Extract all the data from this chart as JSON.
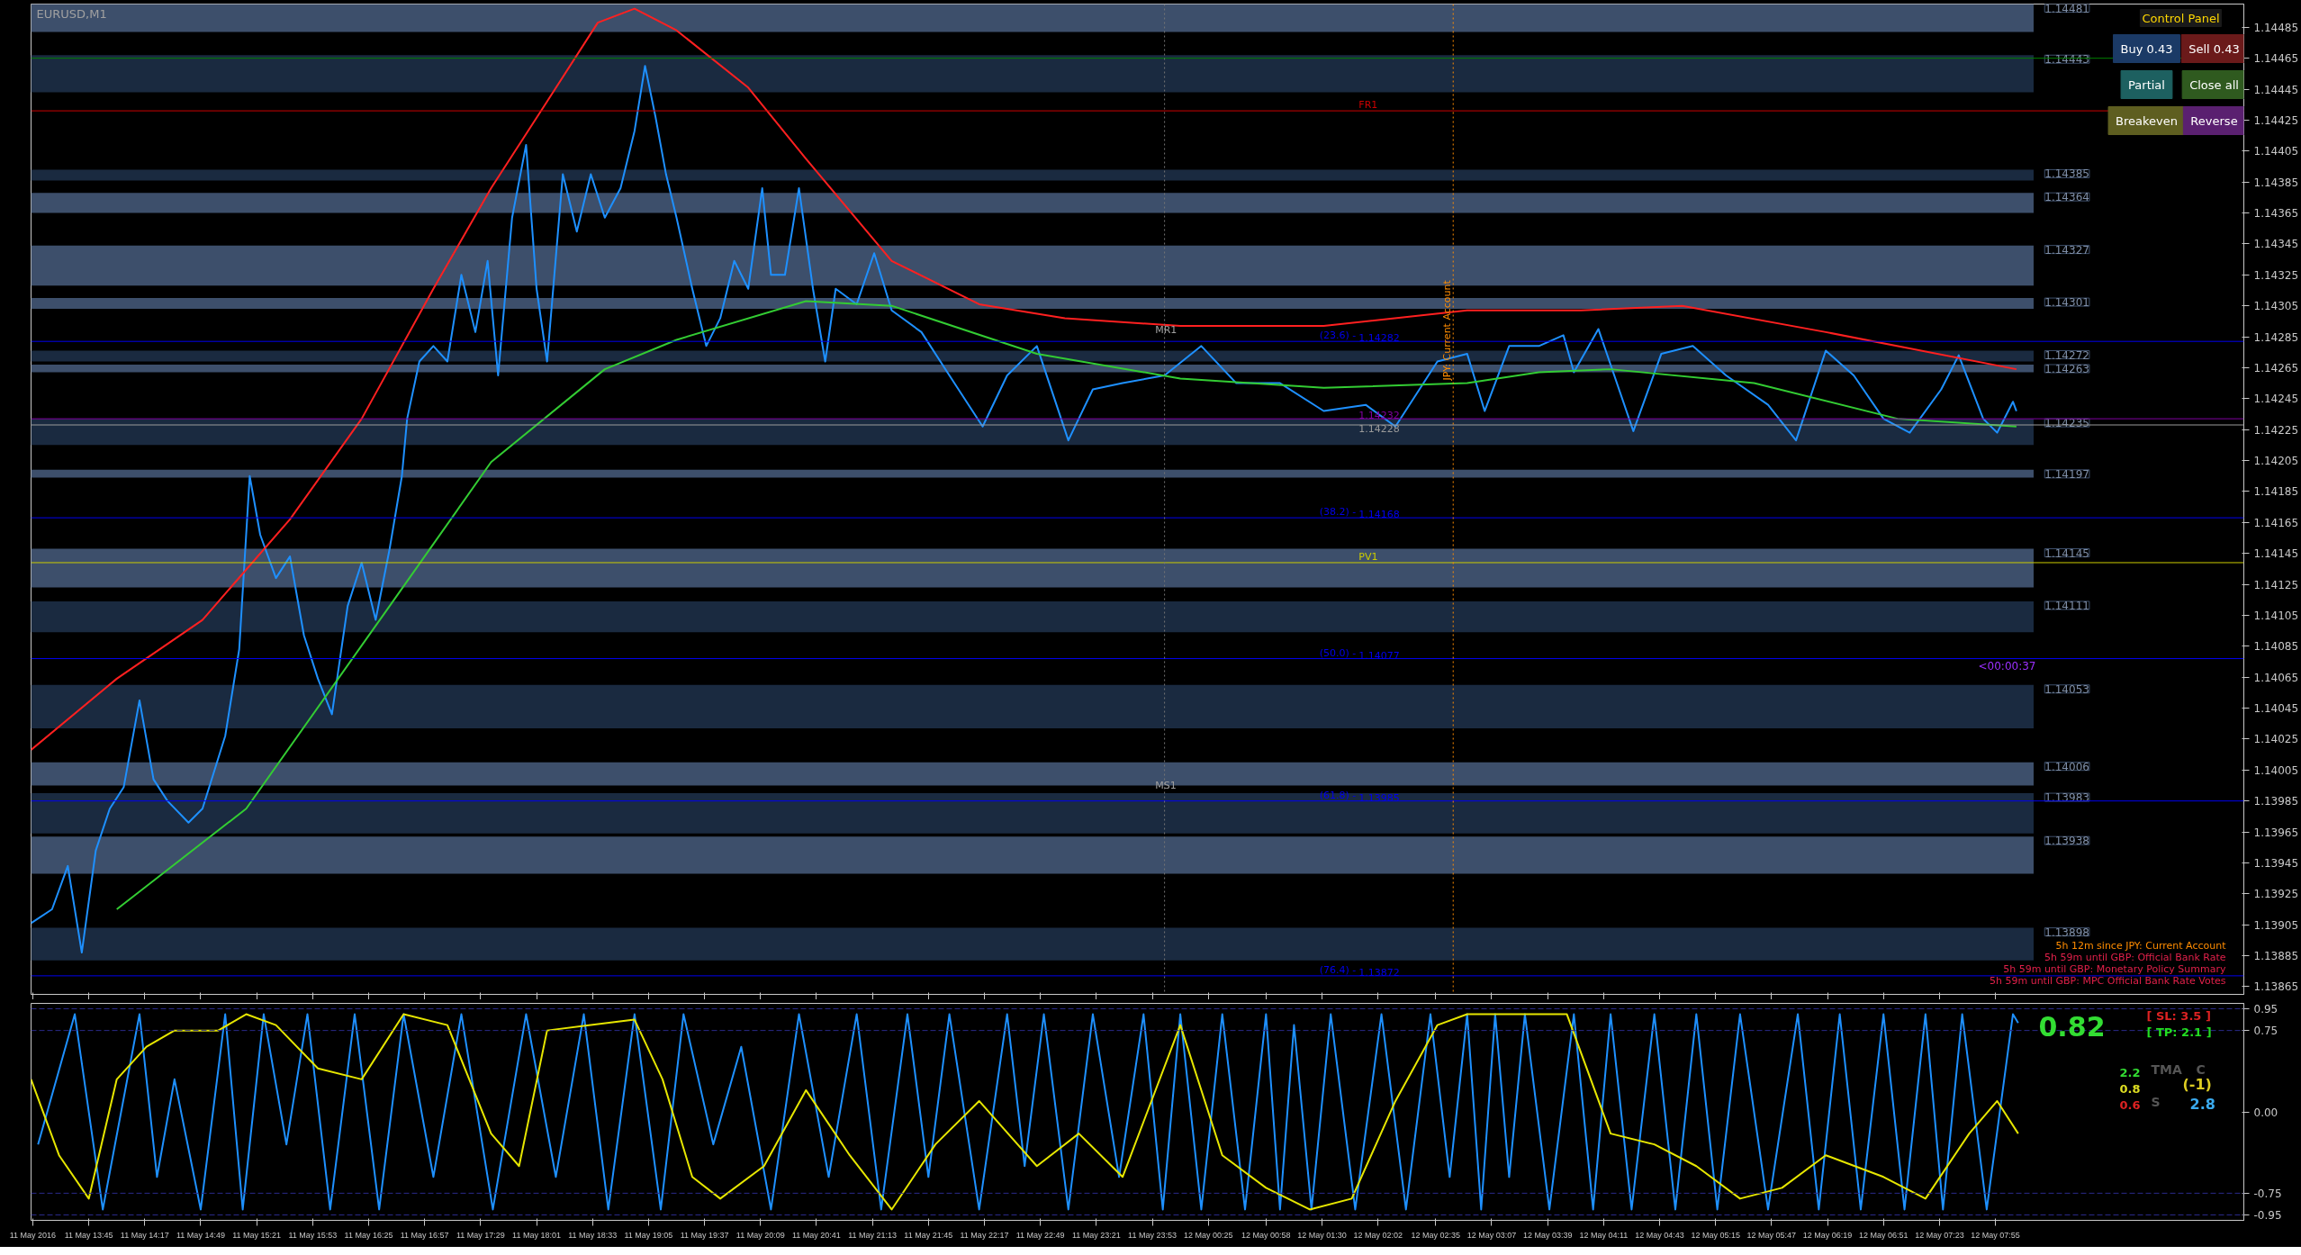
{
  "chart_data": [
    {
      "type": "line",
      "title": "EURUSD,M1",
      "xlim": [
        "2016-05-11T13:12",
        "2016-05-12T10:17"
      ],
      "ylim": [
        1.1386,
        1.145
      ],
      "yticks": [
        1.13865,
        1.13885,
        1.13905,
        1.13925,
        1.13945,
        1.13965,
        1.13985,
        1.14005,
        1.14025,
        1.14045,
        1.14065,
        1.14085,
        1.14105,
        1.14125,
        1.14145,
        1.14165,
        1.14185,
        1.14205,
        1.14225,
        1.14245,
        1.14265,
        1.14285,
        1.14305,
        1.14325,
        1.14345,
        1.14365,
        1.14385,
        1.14405,
        1.14425,
        1.14445,
        1.14465,
        1.14485
      ],
      "xticks": [
        {
          "value": "2016-05-11T13:13",
          "label": null
        },
        {
          "value": "2016-05-11T13:45",
          "label": null
        },
        {
          "value": "2016-05-11T14:17",
          "label": null
        },
        {
          "value": "2016-05-11T14:49",
          "label": null
        },
        {
          "value": "2016-05-11T15:21",
          "label": null
        },
        {
          "value": "2016-05-11T15:53",
          "label": null
        },
        {
          "value": "2016-05-11T16:25",
          "label": null
        },
        {
          "value": "2016-05-11T16:57",
          "label": null
        },
        {
          "value": "2016-05-11T17:29",
          "label": null
        },
        {
          "value": "2016-05-11T18:01",
          "label": null
        },
        {
          "value": "2016-05-11T18:33",
          "label": null
        },
        {
          "value": "2016-05-11T19:05",
          "label": null
        },
        {
          "value": "2016-05-11T19:37",
          "label": null
        },
        {
          "value": "2016-05-11T20:09",
          "label": null
        },
        {
          "value": "2016-05-11T20:41",
          "label": null
        },
        {
          "value": "2016-05-11T21:13",
          "label": null
        },
        {
          "value": "2016-05-11T21:45",
          "label": null
        },
        {
          "value": "2016-05-11T22:17",
          "label": null
        },
        {
          "value": "2016-05-11T22:49",
          "label": null
        },
        {
          "value": "2016-05-11T23:21",
          "label": null
        },
        {
          "value": "2016-05-11T23:53",
          "label": null
        },
        {
          "value": "2016-05-12T00:25",
          "label": null
        },
        {
          "value": "2016-05-12T00:58",
          "label": null
        },
        {
          "value": "2016-05-12T01:30",
          "label": null
        },
        {
          "value": "2016-05-12T02:02",
          "label": null
        },
        {
          "value": "2016-05-12T02:35",
          "label": null
        },
        {
          "value": "2016-05-12T03:07",
          "label": null
        },
        {
          "value": "2016-05-12T03:39",
          "label": null
        },
        {
          "value": "2016-05-12T04:11",
          "label": null
        },
        {
          "value": "2016-05-12T04:43",
          "label": null
        },
        {
          "value": "2016-05-12T05:15",
          "label": null
        },
        {
          "value": "2016-05-12T05:47",
          "label": null
        },
        {
          "value": "2016-05-12T06:19",
          "label": null
        },
        {
          "value": "2016-05-12T06:51",
          "label": null
        },
        {
          "value": "2016-05-12T07:23",
          "label": null
        },
        {
          "value": "2016-05-12T07:55",
          "label": null
        }
      ],
      "tick_labels": "y",
      "grid": false,
      "series": [
        {
          "color": "#1e90ff",
          "x": [
            "2016-05-11T13:12",
            "2016-05-11T13:24",
            "2016-05-11T13:33",
            "2016-05-11T13:41",
            "2016-05-11T13:49",
            "2016-05-11T13:57",
            "2016-05-11T14:05",
            "2016-05-11T14:14",
            "2016-05-11T14:22",
            "2016-05-11T14:30",
            "2016-05-11T14:42",
            "2016-05-11T14:50",
            "2016-05-11T15:03",
            "2016-05-11T15:11",
            "2016-05-11T15:17",
            "2016-05-11T15:23",
            "2016-05-11T15:32",
            "2016-05-11T15:40",
            "2016-05-11T15:48",
            "2016-05-11T15:56",
            "2016-05-11T16:04",
            "2016-05-11T16:13",
            "2016-05-11T16:21",
            "2016-05-11T16:29",
            "2016-05-11T16:37",
            "2016-05-11T16:44",
            "2016-05-11T16:47",
            "2016-05-11T16:54",
            "2016-05-11T17:02",
            "2016-05-11T17:10",
            "2016-05-11T17:18",
            "2016-05-11T17:26",
            "2016-05-11T17:33",
            "2016-05-11T17:39",
            "2016-05-11T17:47",
            "2016-05-11T17:55",
            "2016-05-11T18:01",
            "2016-05-11T18:07",
            "2016-05-11T18:16",
            "2016-05-11T18:24",
            "2016-05-11T18:32",
            "2016-05-11T18:40",
            "2016-05-11T18:49",
            "2016-05-11T18:57",
            "2016-05-11T19:03",
            "2016-05-11T19:09",
            "2016-05-11T19:15",
            "2016-05-11T19:21",
            "2016-05-11T19:30",
            "2016-05-11T19:38",
            "2016-05-11T19:46",
            "2016-05-11T19:54",
            "2016-05-11T20:02",
            "2016-05-11T20:10",
            "2016-05-11T20:15",
            "2016-05-11T20:23",
            "2016-05-11T20:31",
            "2016-05-11T20:39",
            "2016-05-11T20:46",
            "2016-05-11T20:52",
            "2016-05-11T21:04",
            "2016-05-11T21:14",
            "2016-05-11T21:24",
            "2016-05-11T21:41",
            "2016-05-11T21:57",
            "2016-05-11T22:16",
            "2016-05-11T22:30",
            "2016-05-11T22:47",
            "2016-05-11T23:05",
            "2016-05-11T23:19",
            "2016-05-11T23:36",
            "2016-05-12T00:00",
            "2016-05-12T00:21",
            "2016-05-12T00:41",
            "2016-05-12T01:06",
            "2016-05-12T01:31",
            "2016-05-12T01:55",
            "2016-05-12T02:12",
            "2016-05-12T02:36",
            "2016-05-12T02:53",
            "2016-05-12T03:03",
            "2016-05-12T03:17",
            "2016-05-12T03:34",
            "2016-05-12T03:48",
            "2016-05-12T03:54",
            "2016-05-12T04:08",
            "2016-05-12T04:28",
            "2016-05-12T04:44",
            "2016-05-12T05:02",
            "2016-05-12T05:21",
            "2016-05-12T05:45",
            "2016-05-12T06:01",
            "2016-05-12T06:18",
            "2016-05-12T06:34",
            "2016-05-12T06:51",
            "2016-05-12T07:06",
            "2016-05-12T07:24",
            "2016-05-12T07:34",
            "2016-05-12T07:48",
            "2016-05-12T07:56",
            "2016-05-12T08:05",
            "2016-05-12T08:07"
          ],
          "values": [
            1.13906,
            1.13915,
            1.13943,
            1.13887,
            1.13953,
            1.1398,
            1.13994,
            1.1405,
            1.13999,
            1.13985,
            1.13971,
            1.1398,
            1.14027,
            1.14083,
            1.14195,
            1.14157,
            1.14129,
            1.14143,
            1.14092,
            1.14064,
            1.14041,
            1.14111,
            1.14139,
            1.14102,
            1.14148,
            1.14195,
            1.14232,
            1.14269,
            1.14279,
            1.14269,
            1.14325,
            1.14288,
            1.14334,
            1.1426,
            1.14362,
            1.14409,
            1.14316,
            1.14269,
            1.1439,
            1.14353,
            1.1439,
            1.14362,
            1.14381,
            1.14418,
            1.1446,
            1.14427,
            1.1439,
            1.14362,
            1.14316,
            1.14279,
            1.14297,
            1.14334,
            1.14316,
            1.14381,
            1.14325,
            1.14325,
            1.14381,
            1.14316,
            1.14269,
            1.14316,
            1.14306,
            1.14339,
            1.14302,
            1.14288,
            1.1426,
            1.14227,
            1.1426,
            1.14279,
            1.14218,
            1.14251,
            1.14255,
            1.1426,
            1.14279,
            1.14255,
            1.14255,
            1.14237,
            1.14241,
            1.14227,
            1.14269,
            1.14274,
            1.14237,
            1.14279,
            1.14279,
            1.14286,
            1.14262,
            1.1429,
            1.14224,
            1.14274,
            1.14279,
            1.1426,
            1.14241,
            1.14218,
            1.14276,
            1.1426,
            1.14232,
            1.14223,
            1.14251,
            1.14273,
            1.14232,
            1.14223,
            1.14243,
            1.14237
          ]
        },
        {
          "color": "#ff2020",
          "x": [
            "2016-05-11T13:12",
            "2016-05-11T14:01",
            "2016-05-11T14:50",
            "2016-05-11T15:40",
            "2016-05-11T16:21",
            "2016-05-11T17:02",
            "2016-05-11T17:35",
            "2016-05-11T18:07",
            "2016-05-11T18:36",
            "2016-05-11T18:57",
            "2016-05-11T19:21",
            "2016-05-11T20:02",
            "2016-05-11T20:35",
            "2016-05-11T21:24",
            "2016-05-11T22:14",
            "2016-05-11T23:03",
            "2016-05-12T00:09",
            "2016-05-12T01:31",
            "2016-05-12T02:53",
            "2016-05-12T03:58",
            "2016-05-12T04:56",
            "2016-05-12T06:18",
            "2016-05-12T08:07"
          ],
          "values": [
            1.14018,
            1.14064,
            1.14102,
            1.14167,
            1.14232,
            1.14316,
            1.14381,
            1.14437,
            1.14488,
            1.14497,
            1.14483,
            1.14446,
            1.144,
            1.14334,
            1.14306,
            1.14297,
            1.14292,
            1.14292,
            1.14302,
            1.14302,
            1.14305,
            1.14288,
            1.14264
          ]
        },
        {
          "color": "#33cc33",
          "x": [
            "2016-05-11T14:01",
            "2016-05-11T15:15",
            "2016-05-11T16:37",
            "2016-05-11T17:35",
            "2016-05-11T18:40",
            "2016-05-11T19:21",
            "2016-05-11T20:35",
            "2016-05-11T21:24",
            "2016-05-11T22:47",
            "2016-05-12T00:09",
            "2016-05-12T01:31",
            "2016-05-12T02:53",
            "2016-05-12T03:34",
            "2016-05-12T04:15",
            "2016-05-12T05:37",
            "2016-05-12T06:59",
            "2016-05-12T08:07"
          ],
          "values": [
            1.13915,
            1.1398,
            1.14111,
            1.14204,
            1.14264,
            1.14283,
            1.14308,
            1.14305,
            1.14274,
            1.14258,
            1.14252,
            1.14255,
            1.14262,
            1.14264,
            1.14255,
            1.14232,
            1.14227
          ]
        }
      ],
      "bands": [
        {
          "axis": "y",
          "from": 1.14482,
          "to": 1.145,
          "label": "1.14481",
          "color": "#3d4f6b"
        },
        {
          "axis": "y",
          "from": 1.14443,
          "to": 1.14467,
          "label": "1.14443",
          "color": "#1a2a40"
        },
        {
          "axis": "y",
          "from": 1.14386,
          "to": 1.14393,
          "label": "1.14385",
          "color": "#1a2a40"
        },
        {
          "axis": "y",
          "from": 1.14365,
          "to": 1.14378,
          "label": "1.14364",
          "color": "#3d4f6b"
        },
        {
          "axis": "y",
          "from": 1.14318,
          "to": 1.14344,
          "label": "1.14327",
          "color": "#3d4f6b"
        },
        {
          "axis": "y",
          "from": 1.14303,
          "to": 1.1431,
          "label": "1.14301",
          "color": "#3d4f6b"
        },
        {
          "axis": "y",
          "from": 1.14269,
          "to": 1.14276,
          "label": "1.14272",
          "color": "#1a2a40"
        },
        {
          "axis": "y",
          "from": 1.14262,
          "to": 1.14267,
          "label": "1.14263",
          "color": "#3d4f6b"
        },
        {
          "axis": "y",
          "from": 1.14215,
          "to": 1.14232,
          "label": "1.14235",
          "color": "#1a2a40"
        },
        {
          "axis": "y",
          "from": 1.14194,
          "to": 1.14199,
          "label": "1.14197",
          "color": "#3d4f6b"
        },
        {
          "axis": "y",
          "from": 1.14123,
          "to": 1.14148,
          "label": "1.14145",
          "color": "#3d4f6b"
        },
        {
          "axis": "y",
          "from": 1.14094,
          "to": 1.14114,
          "label": "1.14111",
          "color": "#1a2a40"
        },
        {
          "axis": "y",
          "from": 1.14032,
          "to": 1.1406,
          "label": "1.14053",
          "color": "#1a2a40"
        },
        {
          "axis": "y",
          "from": 1.13995,
          "to": 1.1401,
          "label": "1.14006",
          "color": "#3d4f6b"
        },
        {
          "axis": "y",
          "from": 1.13964,
          "to": 1.1399,
          "label": "1.13983",
          "color": "#1a2a40"
        },
        {
          "axis": "y",
          "from": 1.13938,
          "to": 1.13962,
          "label": "1.13938",
          "color": "#3d4f6b"
        },
        {
          "axis": "y",
          "from": 1.13882,
          "to": 1.13903,
          "label": "1.13898",
          "color": "#1a2a40"
        }
      ],
      "ref_lines": [
        {
          "axis": "y",
          "value": 1.14465,
          "color": "#008000"
        },
        {
          "axis": "y",
          "value": 1.14431,
          "label": "FR1",
          "color": "#cc0000"
        },
        {
          "axis": "y",
          "value": 1.14282,
          "label": "1.14282",
          "color": "#0000ee"
        },
        {
          "axis": "y",
          "value": 1.14168,
          "label": "1.14168",
          "color": "#0000ee"
        },
        {
          "axis": "y",
          "value": 1.14139,
          "label": "PV1",
          "color": "#cccc00"
        },
        {
          "axis": "y",
          "value": 1.14077,
          "label": "1.14077",
          "color": "#0000ee"
        },
        {
          "axis": "y",
          "value": 1.13985,
          "label": "1.13985",
          "color": "#0000ee"
        },
        {
          "axis": "y",
          "value": 1.13872,
          "label": "1.13872",
          "color": "#0000ee"
        },
        {
          "axis": "y",
          "value": 1.14232,
          "label": "1.14232",
          "color": "#8000a0"
        },
        {
          "axis": "y",
          "value": 1.14228,
          "label": "1.14228",
          "color": "#9a9a9a"
        },
        {
          "axis": "x",
          "value": "2016-05-12T00:00",
          "color": "#777777",
          "line_style": "dotted"
        },
        {
          "axis": "x",
          "value": "2016-05-12T02:45",
          "label": "JPY: Current Account",
          "color": "#ff8c00",
          "line_style": "dotted"
        }
      ],
      "annotations": [
        "MR1",
        "MS1",
        "<00:00:37",
        "5h 12m since JPY: Current Account",
        "5h 59m until GBP: Official Bank Rate",
        "5h 59m until GBP: Monetary Policy Summary",
        "5h 59m until GBP: MPC Official Bank Rate Votes",
        "Control Panel",
        "Buy 0.43",
        "Sell 0.43",
        "Partial",
        "Close all",
        "Breakeven",
        "Reverse",
        {
          "text": "(23.6) -",
          "x": "2016-05-12T01:51",
          "y": 1.14282
        },
        {
          "text": "(38.2) -",
          "x": "2016-05-12T01:51",
          "y": 1.14168
        },
        {
          "text": "(50.0) -",
          "x": "2016-05-12T01:51",
          "y": 1.14077
        },
        {
          "text": "(61.8) -",
          "x": "2016-05-12T01:51",
          "y": 1.13985
        },
        {
          "text": "(76.4) -",
          "x": "2016-05-12T01:51",
          "y": 1.13872
        }
      ]
    },
    {
      "type": "line",
      "xlim": [
        "2016-05-11T13:12",
        "2016-05-12T10:17"
      ],
      "ylim": [
        -1.0,
        1.0
      ],
      "yticks": [
        0.95,
        0.75,
        {
          "value": 0,
          "label": "0.00"
        },
        -0.75,
        -0.95
      ],
      "xticks": [
        {
          "value": "2016-05-11T13:13",
          "label": "11 May 2016"
        },
        {
          "value": "2016-05-11T13:45",
          "label": "11 May 13:45"
        },
        {
          "value": "2016-05-11T14:17",
          "label": "11 May 14:17"
        },
        {
          "value": "2016-05-11T14:49",
          "label": "11 May 14:49"
        },
        {
          "value": "2016-05-11T15:21",
          "label": "11 May 15:21"
        },
        {
          "value": "2016-05-11T15:53",
          "label": "11 May 15:53"
        },
        {
          "value": "2016-05-11T16:25",
          "label": "11 May 16:25"
        },
        {
          "value": "2016-05-11T16:57",
          "label": "11 May 16:57"
        },
        {
          "value": "2016-05-11T17:29",
          "label": "11 May 17:29"
        },
        {
          "value": "2016-05-11T18:01",
          "label": "11 May 18:01"
        },
        {
          "value": "2016-05-11T18:33",
          "label": "11 May 18:33"
        },
        {
          "value": "2016-05-11T19:05",
          "label": "11 May 19:05"
        },
        {
          "value": "2016-05-11T19:37",
          "label": "11 May 19:37"
        },
        {
          "value": "2016-05-11T20:09",
          "label": "11 May 20:09"
        },
        {
          "value": "2016-05-11T20:41",
          "label": "11 May 20:41"
        },
        {
          "value": "2016-05-11T21:13",
          "label": "11 May 21:13"
        },
        {
          "value": "2016-05-11T21:45",
          "label": "11 May 21:45"
        },
        {
          "value": "2016-05-11T22:17",
          "label": "11 May 22:17"
        },
        {
          "value": "2016-05-11T22:49",
          "label": "11 May 22:49"
        },
        {
          "value": "2016-05-11T23:21",
          "label": "11 May 23:21"
        },
        {
          "value": "2016-05-11T23:53",
          "label": "11 May 23:53"
        },
        {
          "value": "2016-05-12T00:25",
          "label": "12 May 00:25"
        },
        {
          "value": "2016-05-12T00:58",
          "label": "12 May 00:58"
        },
        {
          "value": "2016-05-12T01:30",
          "label": "12 May 01:30"
        },
        {
          "value": "2016-05-12T02:02",
          "label": "12 May 02:02"
        },
        {
          "value": "2016-05-12T02:35",
          "label": "12 May 02:35"
        },
        {
          "value": "2016-05-12T03:07",
          "label": "12 May 03:07"
        },
        {
          "value": "2016-05-12T03:39",
          "label": "12 May 03:39"
        },
        {
          "value": "2016-05-12T04:11",
          "label": "12 May 04:11"
        },
        {
          "value": "2016-05-12T04:43",
          "label": "12 May 04:43"
        },
        {
          "value": "2016-05-12T05:15",
          "label": "12 May 05:15"
        },
        {
          "value": "2016-05-12T05:47",
          "label": "12 May 05:47"
        },
        {
          "value": "2016-05-12T06:19",
          "label": "12 May 06:19"
        },
        {
          "value": "2016-05-12T06:51",
          "label": "12 May 06:51"
        },
        {
          "value": "2016-05-12T07:23",
          "label": "12 May 07:23"
        },
        {
          "value": "2016-05-12T07:55",
          "label": "12 May 07:55"
        }
      ],
      "grid": false,
      "series": [
        {
          "color": "#1e90ff",
          "x": [
            "2016-05-11T13:16",
            "2016-05-11T13:37",
            "2016-05-11T13:53",
            "2016-05-11T14:14",
            "2016-05-11T14:24",
            "2016-05-11T14:34",
            "2016-05-11T14:49",
            "2016-05-11T15:03",
            "2016-05-11T15:13",
            "2016-05-11T15:25",
            "2016-05-11T15:38",
            "2016-05-11T15:50",
            "2016-05-11T16:03",
            "2016-05-11T16:17",
            "2016-05-11T16:31",
            "2016-05-11T16:45",
            "2016-05-11T17:02",
            "2016-05-11T17:18",
            "2016-05-11T17:36",
            "2016-05-11T17:55",
            "2016-05-11T18:12",
            "2016-05-11T18:28",
            "2016-05-11T18:42",
            "2016-05-11T18:57",
            "2016-05-11T19:12",
            "2016-05-11T19:25",
            "2016-05-11T19:42",
            "2016-05-11T19:58",
            "2016-05-11T20:15",
            "2016-05-11T20:31",
            "2016-05-11T20:48",
            "2016-05-11T21:04",
            "2016-05-11T21:18",
            "2016-05-11T21:33",
            "2016-05-11T21:45",
            "2016-05-11T21:57",
            "2016-05-11T22:14",
            "2016-05-11T22:30",
            "2016-05-11T22:40",
            "2016-05-11T22:51",
            "2016-05-11T23:05",
            "2016-05-11T23:19",
            "2016-05-11T23:34",
            "2016-05-11T23:48",
            "2016-05-11T23:59",
            "2016-05-12T00:09",
            "2016-05-12T00:21",
            "2016-05-12T00:33",
            "2016-05-12T00:46",
            "2016-05-12T00:58",
            "2016-05-12T01:06",
            "2016-05-12T01:14",
            "2016-05-12T01:24",
            "2016-05-12T01:35",
            "2016-05-12T01:49",
            "2016-05-12T02:04",
            "2016-05-12T02:18",
            "2016-05-12T02:32",
            "2016-05-12T02:43",
            "2016-05-12T02:53",
            "2016-05-12T03:01",
            "2016-05-12T03:09",
            "2016-05-12T03:17",
            "2016-05-12T03:26",
            "2016-05-12T03:40",
            "2016-05-12T03:54",
            "2016-05-12T04:05",
            "2016-05-12T04:15",
            "2016-05-12T04:27",
            "2016-05-12T04:40",
            "2016-05-12T04:52",
            "2016-05-12T05:04",
            "2016-05-12T05:16",
            "2016-05-12T05:29",
            "2016-05-12T05:45",
            "2016-05-12T06:02",
            "2016-05-12T06:14",
            "2016-05-12T06:26",
            "2016-05-12T06:38",
            "2016-05-12T06:51",
            "2016-05-12T07:03",
            "2016-05-12T07:15",
            "2016-05-12T07:25",
            "2016-05-12T07:36",
            "2016-05-12T07:50",
            "2016-05-12T08:05",
            "2016-05-12T08:08"
          ],
          "values": [
            -0.3,
            0.9,
            -0.9,
            0.9,
            -0.6,
            0.3,
            -0.9,
            0.9,
            -0.9,
            0.9,
            -0.3,
            0.9,
            -0.9,
            0.9,
            -0.9,
            0.9,
            -0.6,
            0.9,
            -0.9,
            0.9,
            -0.6,
            0.9,
            -0.9,
            0.9,
            -0.9,
            0.9,
            -0.3,
            0.6,
            -0.9,
            0.9,
            -0.6,
            0.9,
            -0.9,
            0.9,
            -0.6,
            0.9,
            -0.9,
            0.9,
            -0.5,
            0.9,
            -0.9,
            0.9,
            -0.6,
            0.9,
            -0.9,
            0.9,
            -0.9,
            0.9,
            -0.9,
            0.9,
            -0.9,
            0.8,
            -0.9,
            0.9,
            -0.9,
            0.9,
            -0.9,
            0.9,
            -0.6,
            0.9,
            -0.9,
            0.9,
            -0.6,
            0.9,
            -0.9,
            0.9,
            -0.9,
            0.9,
            -0.9,
            0.9,
            -0.9,
            0.9,
            -0.9,
            0.9,
            -0.9,
            0.9,
            -0.9,
            0.9,
            -0.9,
            0.9,
            -0.9,
            0.9,
            -0.9,
            0.9,
            -0.9,
            0.9,
            0.82
          ]
        },
        {
          "color": "#e6e600",
          "x": [
            "2016-05-11T13:12",
            "2016-05-11T13:28",
            "2016-05-11T13:45",
            "2016-05-11T14:01",
            "2016-05-11T14:18",
            "2016-05-11T14:34",
            "2016-05-11T14:59",
            "2016-05-11T15:15",
            "2016-05-11T15:32",
            "2016-05-11T15:56",
            "2016-05-11T16:21",
            "2016-05-11T16:45",
            "2016-05-11T17:10",
            "2016-05-11T17:35",
            "2016-05-11T17:51",
            "2016-05-11T18:07",
            "2016-05-11T18:32",
            "2016-05-11T18:57",
            "2016-05-11T19:13",
            "2016-05-11T19:30",
            "2016-05-11T19:46",
            "2016-05-11T20:11",
            "2016-05-11T20:35",
            "2016-05-11T21:00",
            "2016-05-11T21:24",
            "2016-05-11T21:49",
            "2016-05-11T22:14",
            "2016-05-11T22:47",
            "2016-05-11T23:11",
            "2016-05-11T23:36",
            "2016-05-12T00:09",
            "2016-05-12T00:33",
            "2016-05-12T00:58",
            "2016-05-12T01:23",
            "2016-05-12T01:47",
            "2016-05-12T02:12",
            "2016-05-12T02:36",
            "2016-05-12T02:53",
            "2016-05-12T03:26",
            "2016-05-12T03:50",
            "2016-05-12T04:15",
            "2016-05-12T04:40",
            "2016-05-12T05:04",
            "2016-05-12T05:29",
            "2016-05-12T05:53",
            "2016-05-12T06:18",
            "2016-05-12T06:51",
            "2016-05-12T07:15",
            "2016-05-12T07:40",
            "2016-05-12T07:56",
            "2016-05-12T08:08"
          ],
          "values": [
            0.3,
            -0.4,
            -0.8,
            0.3,
            0.6,
            0.75,
            0.75,
            0.9,
            0.8,
            0.4,
            0.3,
            0.9,
            0.8,
            -0.2,
            -0.5,
            0.75,
            0.8,
            0.85,
            0.3,
            -0.6,
            -0.8,
            -0.5,
            0.2,
            -0.4,
            -0.9,
            -0.3,
            0.1,
            -0.5,
            -0.2,
            -0.6,
            0.8,
            -0.4,
            -0.7,
            -0.9,
            -0.8,
            0.1,
            0.8,
            0.9,
            0.9,
            0.9,
            -0.2,
            -0.3,
            -0.5,
            -0.8,
            -0.7,
            -0.4,
            -0.6,
            -0.8,
            -0.2,
            0.1,
            -0.2
          ]
        }
      ],
      "ref_lines": [
        {
          "axis": "y",
          "value": 0.95,
          "color": "#2a2a8a",
          "line_style": "dashed"
        },
        {
          "axis": "y",
          "value": 0.75,
          "color": "#2a2a8a",
          "line_style": "dashed"
        },
        {
          "axis": "y",
          "value": -0.75,
          "color": "#2a2a8a",
          "line_style": "dashed"
        },
        {
          "axis": "y",
          "value": -0.95,
          "color": "#2a2a8a",
          "line_style": "dashed"
        }
      ],
      "annotations": [
        "0.82",
        "[ SL: 3.5 ]",
        "[ TP: 2.1 ]",
        "2.2",
        "TMA",
        "C",
        "0.8",
        "(-1)",
        "0.6",
        "S",
        "2.8"
      ]
    }
  ]
}
